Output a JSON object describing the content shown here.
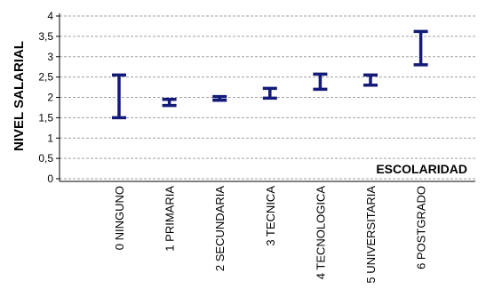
{
  "chart_data": {
    "type": "errorbar",
    "xlabel": "ESCOLARIDAD",
    "ylabel": "NIVEL SALARIAL",
    "ylim": [
      0,
      4
    ],
    "yticks": [
      "0",
      "0,5",
      "1",
      "1,5",
      "2",
      "2,5",
      "3",
      "3,5",
      "4"
    ],
    "grid": true,
    "categories": [
      "0 NINGUNO",
      "1 PRIMARIA",
      "2 SECUNDARIA",
      "3 TECNICA",
      "4 TECNOLOGICA",
      "5 UNIVERSITARIA",
      "6 POSTGRADO"
    ],
    "intervals": [
      {
        "low": 1.5,
        "high": 2.55
      },
      {
        "low": 1.8,
        "high": 1.95
      },
      {
        "low": 1.93,
        "high": 2.02
      },
      {
        "low": 1.98,
        "high": 2.22
      },
      {
        "low": 2.2,
        "high": 2.57
      },
      {
        "low": 2.3,
        "high": 2.55
      },
      {
        "low": 2.8,
        "high": 3.62
      }
    ],
    "colors": {
      "interval": "#131a78",
      "grid": "#a0a0a0",
      "axis": "#000000"
    }
  }
}
